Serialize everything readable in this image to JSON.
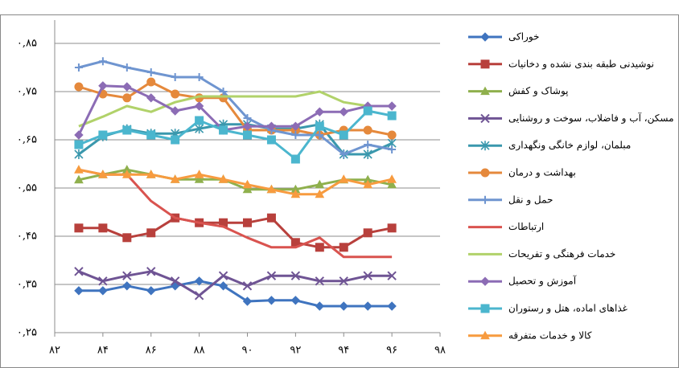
{
  "chart_data": {
    "type": "line",
    "x": [
      83,
      84,
      85,
      86,
      87,
      88,
      89,
      90,
      91,
      92,
      93,
      94,
      95,
      96
    ],
    "xlim": [
      82,
      98
    ],
    "xticks": [
      {
        "value": 82,
        "label": "۸۲"
      },
      {
        "value": 84,
        "label": "۸۴"
      },
      {
        "value": 86,
        "label": "۸۶"
      },
      {
        "value": 88,
        "label": "۸۸"
      },
      {
        "value": 90,
        "label": "۹۰"
      },
      {
        "value": 92,
        "label": "۹۲"
      },
      {
        "value": 94,
        "label": "۹۴"
      },
      {
        "value": 96,
        "label": "۹۶"
      },
      {
        "value": 98,
        "label": "۹۸"
      }
    ],
    "ylim": [
      0.25,
      0.85
    ],
    "yticks": [
      {
        "value": 0.25,
        "label": "۰,۲۵"
      },
      {
        "value": 0.35,
        "label": "۰,۳۵"
      },
      {
        "value": 0.45,
        "label": "۰,۴۵"
      },
      {
        "value": 0.55,
        "label": "۰,۵۵"
      },
      {
        "value": 0.65,
        "label": "۰,۶۵"
      },
      {
        "value": 0.75,
        "label": "۰,۷۵"
      },
      {
        "value": 0.85,
        "label": "۰,۸۵"
      }
    ],
    "grid": true,
    "legend": "right",
    "series": [
      {
        "name": "خوراکی",
        "color": "#3f74bf",
        "marker": "diamond",
        "values": [
          0.337,
          0.337,
          0.347,
          0.337,
          0.347,
          0.357,
          0.347,
          0.315,
          0.317,
          0.317,
          0.305,
          0.305,
          0.305,
          0.305
        ]
      },
      {
        "name": "نوشیدنی طبقه بندی نشده و دخانیات",
        "color": "#b8403c",
        "marker": "square",
        "values": [
          0.467,
          0.467,
          0.447,
          0.457,
          0.488,
          0.478,
          0.478,
          0.478,
          0.488,
          0.437,
          0.427,
          0.427,
          0.457,
          0.467
        ]
      },
      {
        "name": "پوشاک و کفش",
        "color": "#8fb04d",
        "marker": "triangle",
        "values": [
          0.567,
          0.578,
          0.588,
          0.578,
          0.568,
          0.568,
          0.568,
          0.547,
          0.547,
          0.547,
          0.557,
          0.567,
          0.567,
          0.557
        ]
      },
      {
        "name": "مسکن، آب و فاضلاب، سوخت و روشنایی",
        "color": "#6f5494",
        "marker": "x",
        "values": [
          0.377,
          0.357,
          0.368,
          0.377,
          0.357,
          0.327,
          0.368,
          0.347,
          0.368,
          0.368,
          0.357,
          0.357,
          0.368,
          0.368
        ]
      },
      {
        "name": "مبلمان، لوازم خانگی ونگهداری",
        "color": "#3a98ad",
        "marker": "star",
        "values": [
          0.62,
          0.657,
          0.672,
          0.663,
          0.663,
          0.673,
          0.682,
          0.682,
          0.673,
          0.673,
          0.682,
          0.62,
          0.62,
          0.643
        ]
      },
      {
        "name": "بهداشت و درمان",
        "color": "#e5893c",
        "marker": "circle",
        "values": [
          0.76,
          0.745,
          0.737,
          0.77,
          0.745,
          0.737,
          0.737,
          0.67,
          0.67,
          0.67,
          0.66,
          0.67,
          0.67,
          0.66
        ]
      },
      {
        "name": "حمل و نقل",
        "color": "#6f95d0",
        "marker": "plus",
        "values": [
          0.8,
          0.813,
          0.8,
          0.79,
          0.78,
          0.78,
          0.75,
          0.695,
          0.67,
          0.66,
          0.66,
          0.62,
          0.64,
          0.63
        ]
      },
      {
        "name": "ارتباطات",
        "color": "#d9534f",
        "marker": "none",
        "values": [
          0.588,
          0.578,
          0.578,
          0.523,
          0.488,
          0.478,
          0.47,
          0.447,
          0.427,
          0.427,
          0.447,
          0.407,
          0.407,
          0.407
        ]
      },
      {
        "name": "خدمات فرهنگی و تفریحات",
        "color": "#b1d26a",
        "marker": "none",
        "values": [
          0.678,
          0.698,
          0.72,
          0.708,
          0.728,
          0.74,
          0.74,
          0.74,
          0.74,
          0.74,
          0.75,
          0.728,
          0.72,
          0.72
        ]
      },
      {
        "name": "آموزش و تحصیل",
        "color": "#8c6cb5",
        "marker": "diamond",
        "values": [
          0.66,
          0.762,
          0.76,
          0.737,
          0.71,
          0.72,
          0.67,
          0.678,
          0.678,
          0.678,
          0.708,
          0.708,
          0.72,
          0.72
        ]
      },
      {
        "name": "غذاهای اماده، هتل و رستوران",
        "color": "#4bb6ce",
        "marker": "square",
        "values": [
          0.64,
          0.66,
          0.67,
          0.66,
          0.65,
          0.69,
          0.67,
          0.66,
          0.65,
          0.61,
          0.678,
          0.66,
          0.71,
          0.7
        ]
      },
      {
        "name": "کالا و خدمات متفرقه",
        "color": "#f79b3f",
        "marker": "triangle",
        "values": [
          0.588,
          0.578,
          0.578,
          0.578,
          0.568,
          0.578,
          0.568,
          0.557,
          0.547,
          0.537,
          0.537,
          0.568,
          0.557,
          0.568
        ]
      }
    ]
  }
}
